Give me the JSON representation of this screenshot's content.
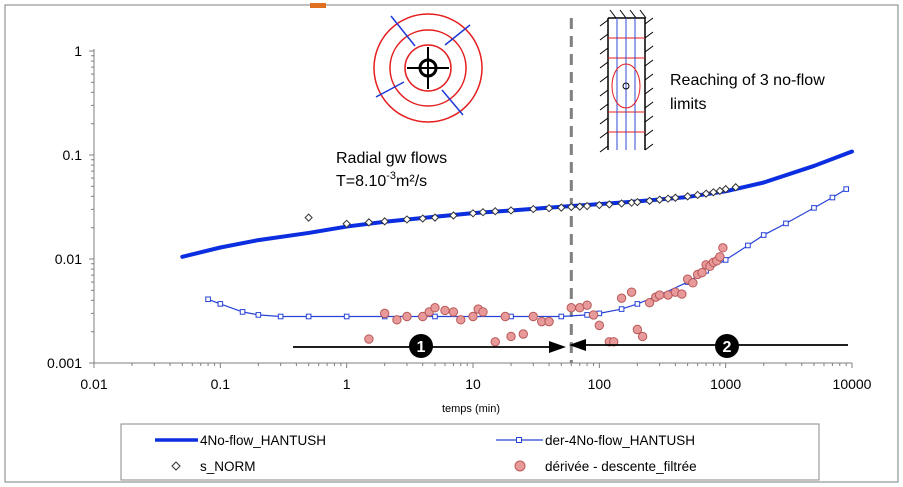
{
  "chart_data": {
    "type": "scatter",
    "xscale": "log",
    "yscale": "log",
    "xlim": [
      0.01,
      10000
    ],
    "ylim": [
      0.001,
      1
    ],
    "xlabel": "temps (min)",
    "ylabel": "",
    "grid": false,
    "legend_position": "bottom",
    "x_tick_labels": [
      "0.01",
      "0.1",
      "1",
      "10",
      "100",
      "1000",
      "10000"
    ],
    "y_tick_labels": [
      "0.001",
      "0.01",
      "0.1",
      "1"
    ],
    "series": [
      {
        "name": "4No-flow_HANTUSH",
        "style": "thick-line",
        "color": "#0b2ee0",
        "x": [
          0.05,
          0.1,
          0.2,
          0.5,
          1,
          2,
          5,
          10,
          20,
          50,
          100,
          200,
          500,
          1000,
          2000,
          5000,
          10000
        ],
        "y": [
          0.0105,
          0.0129,
          0.0152,
          0.0178,
          0.0205,
          0.0228,
          0.0255,
          0.0276,
          0.0293,
          0.0318,
          0.0337,
          0.0358,
          0.0395,
          0.0448,
          0.0544,
          0.0785,
          0.108
        ]
      },
      {
        "name": "der-4No-flow_HANTUSH",
        "style": "line-square-markers",
        "color": "#2743d6",
        "x": [
          0.08,
          0.1,
          0.15,
          0.2,
          0.3,
          0.5,
          1,
          2,
          5,
          10,
          20,
          50,
          80,
          100,
          150,
          200,
          300,
          500,
          700,
          1000,
          1500,
          2000,
          3000,
          5000,
          7000,
          9000
        ],
        "y": [
          0.0041,
          0.0037,
          0.0031,
          0.0029,
          0.0028,
          0.0028,
          0.0028,
          0.0028,
          0.0028,
          0.0028,
          0.0028,
          0.0028,
          0.0029,
          0.003,
          0.0033,
          0.0037,
          0.0045,
          0.006,
          0.0077,
          0.0098,
          0.0135,
          0.017,
          0.022,
          0.031,
          0.039,
          0.047
        ]
      },
      {
        "name": "s_NORM",
        "style": "open-diamond",
        "color": "#333333",
        "x": [
          0.5,
          1,
          1.5,
          2,
          3,
          4,
          5,
          7,
          10,
          12,
          15,
          20,
          30,
          40,
          50,
          60,
          70,
          80,
          100,
          120,
          150,
          180,
          200,
          250,
          300,
          350,
          400,
          500,
          600,
          700,
          800,
          900,
          1000,
          1200
        ],
        "y": [
          0.025,
          0.0218,
          0.0225,
          0.023,
          0.024,
          0.0245,
          0.025,
          0.0262,
          0.0275,
          0.0282,
          0.0288,
          0.0293,
          0.0302,
          0.0308,
          0.0312,
          0.0316,
          0.0319,
          0.0323,
          0.033,
          0.0335,
          0.0342,
          0.0348,
          0.0352,
          0.0362,
          0.0372,
          0.038,
          0.0388,
          0.04,
          0.0413,
          0.0425,
          0.0438,
          0.0452,
          0.047,
          0.049
        ]
      },
      {
        "name": "dérivée - descente_filtrée",
        "style": "filled-circle",
        "color": "#e89a9a",
        "x": [
          1.5,
          2,
          2.5,
          3,
          4,
          4.5,
          5,
          6,
          7,
          8,
          10,
          11,
          12,
          15,
          18,
          20,
          25,
          30,
          35,
          40,
          60,
          70,
          80,
          90,
          100,
          120,
          130,
          150,
          180,
          200,
          220,
          250,
          280,
          300,
          350,
          400,
          450,
          500,
          550,
          600,
          650,
          700,
          750,
          800,
          850,
          900,
          950
        ],
        "y": [
          0.0017,
          0.003,
          0.0026,
          0.0028,
          0.0028,
          0.0031,
          0.0034,
          0.0032,
          0.0031,
          0.0026,
          0.0028,
          0.0033,
          0.0031,
          0.0016,
          0.0028,
          0.0018,
          0.0019,
          0.0028,
          0.0025,
          0.0025,
          0.0034,
          0.0034,
          0.0036,
          0.0029,
          0.0023,
          0.0016,
          0.0016,
          0.0042,
          0.0048,
          0.0021,
          0.0018,
          0.0038,
          0.0043,
          0.0045,
          0.0045,
          0.0048,
          0.0046,
          0.0064,
          0.0059,
          0.0071,
          0.0074,
          0.0088,
          0.0085,
          0.0093,
          0.0096,
          0.0105,
          0.0128
        ]
      }
    ],
    "vertical_line_x": 60,
    "annotations": {
      "radial_title": "Radial gw flows",
      "radial_t_prefix": "T=8.10",
      "radial_t_exp": "-3",
      "radial_t_unit": "m²/s",
      "nofl_line1": "Reaching of 3 no-flow",
      "nofl_line2": "limits",
      "phase1": "1",
      "phase2": "2"
    },
    "colors": {
      "curve": "#0b2ee0",
      "derivative_line": "#2743d6",
      "data_circle_fill": "#e89a9a",
      "data_circle_stroke": "#b85858",
      "dashed_line": "#808080",
      "rings": "#e41e1e",
      "accent_bar": "#e07020"
    }
  }
}
